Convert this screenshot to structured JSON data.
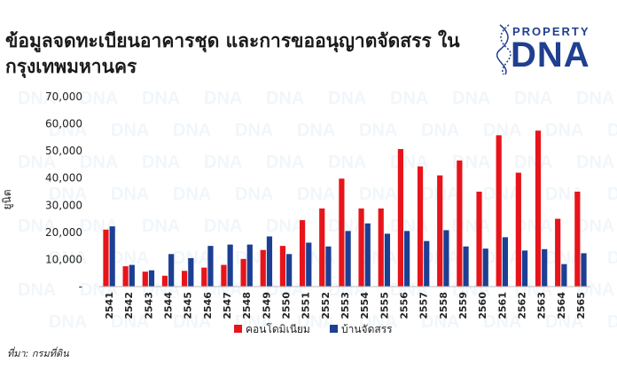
{
  "header": {
    "title": "ข้อมูลจดทะเบียนอาคารชุด และการขออนุญาตจัดสรร ในกรุงเทพมหานคร"
  },
  "logo": {
    "small_text": "PROPERTY",
    "big_text": "DNA",
    "color": "#1f3f8f"
  },
  "source": "ที่มา: กรมที่ดิน",
  "chart_data": {
    "type": "bar",
    "title": "ข้อมูลจดทะเบียนอาคารชุด และการขออนุญาตจัดสรร ในกรุงเทพมหานคร",
    "xlabel": "",
    "ylabel": "ยูนิต",
    "ylim": [
      0,
      70000
    ],
    "yticks": [
      "-",
      "10,000",
      "20,000",
      "30,000",
      "40,000",
      "50,000",
      "60,000",
      "70,000"
    ],
    "grid": false,
    "legend_position": "bottom",
    "categories": [
      "2541",
      "2542",
      "2543",
      "2544",
      "2545",
      "2546",
      "2547",
      "2548",
      "2549",
      "2550",
      "2551",
      "2552",
      "2553",
      "2554",
      "2555",
      "2556",
      "2557",
      "2558",
      "2559",
      "2560",
      "2561",
      "2562",
      "2563",
      "2564",
      "2565"
    ],
    "series": [
      {
        "name": "คอนโดมิเนียม",
        "color": "#e8141b",
        "values": [
          21000,
          7500,
          5500,
          4000,
          5800,
          7000,
          8000,
          10200,
          13500,
          15000,
          24500,
          28800,
          39800,
          28800,
          28800,
          50700,
          44300,
          41000,
          46500,
          35000,
          55800,
          42000,
          57500,
          25000,
          35000
        ]
      },
      {
        "name": "บ้านจัดสรร",
        "color": "#1c3f93",
        "values": [
          22200,
          8000,
          6000,
          12000,
          10500,
          15000,
          15500,
          15500,
          18500,
          12000,
          16200,
          14800,
          20500,
          23300,
          19500,
          20500,
          16800,
          20800,
          14800,
          14000,
          18200,
          13300,
          13800,
          8300,
          12300
        ]
      }
    ]
  }
}
